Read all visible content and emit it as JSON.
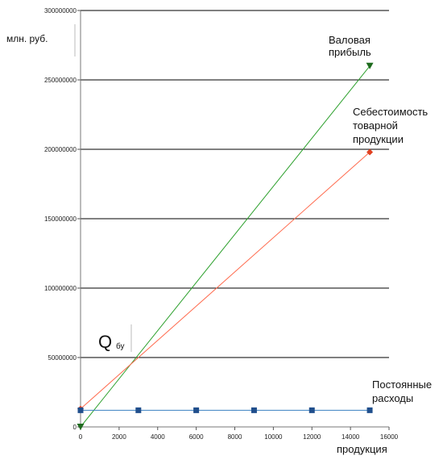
{
  "chart_data": {
    "type": "line",
    "ylabel": "млн. руб.",
    "xlabel": "продукция",
    "xlim": [
      0,
      16000
    ],
    "ylim": [
      0,
      300000000
    ],
    "x_ticks": [
      0,
      2000,
      4000,
      6000,
      8000,
      10000,
      12000,
      14000,
      16000
    ],
    "y_ticks": [
      0,
      50000000,
      100000000,
      150000000,
      200000000,
      250000000,
      300000000
    ],
    "grid": "horizontal",
    "series": [
      {
        "name": "Валовая прибыль",
        "label_lines": [
          "Валовая",
          "прибыль"
        ],
        "color": "#2ca02c",
        "marker": "triangle-down",
        "marker_color": "#1e6b1e",
        "points": [
          [
            0,
            0
          ],
          [
            15000,
            260000000
          ]
        ]
      },
      {
        "name": "Себестоимость товарной продукции",
        "label_lines": [
          "Себестоимость",
          "товарной",
          "продукции"
        ],
        "color": "#ff6a4d",
        "marker": "diamond",
        "marker_color": "#e04020",
        "points": [
          [
            0,
            13000000
          ],
          [
            15000,
            198000000
          ]
        ]
      },
      {
        "name": "Постоянные расходы",
        "label_lines": [
          "Постоянные",
          "расходы"
        ],
        "color": "#3a7fc0",
        "marker": "square",
        "marker_color": "#1f4e8c",
        "points": [
          [
            0,
            12000000
          ],
          [
            3000,
            12000000
          ],
          [
            6000,
            12000000
          ],
          [
            9000,
            12000000
          ],
          [
            12000,
            12000000
          ],
          [
            15000,
            12000000
          ]
        ]
      }
    ],
    "annotations": [
      {
        "main": "Q",
        "sub": "бу"
      }
    ]
  }
}
